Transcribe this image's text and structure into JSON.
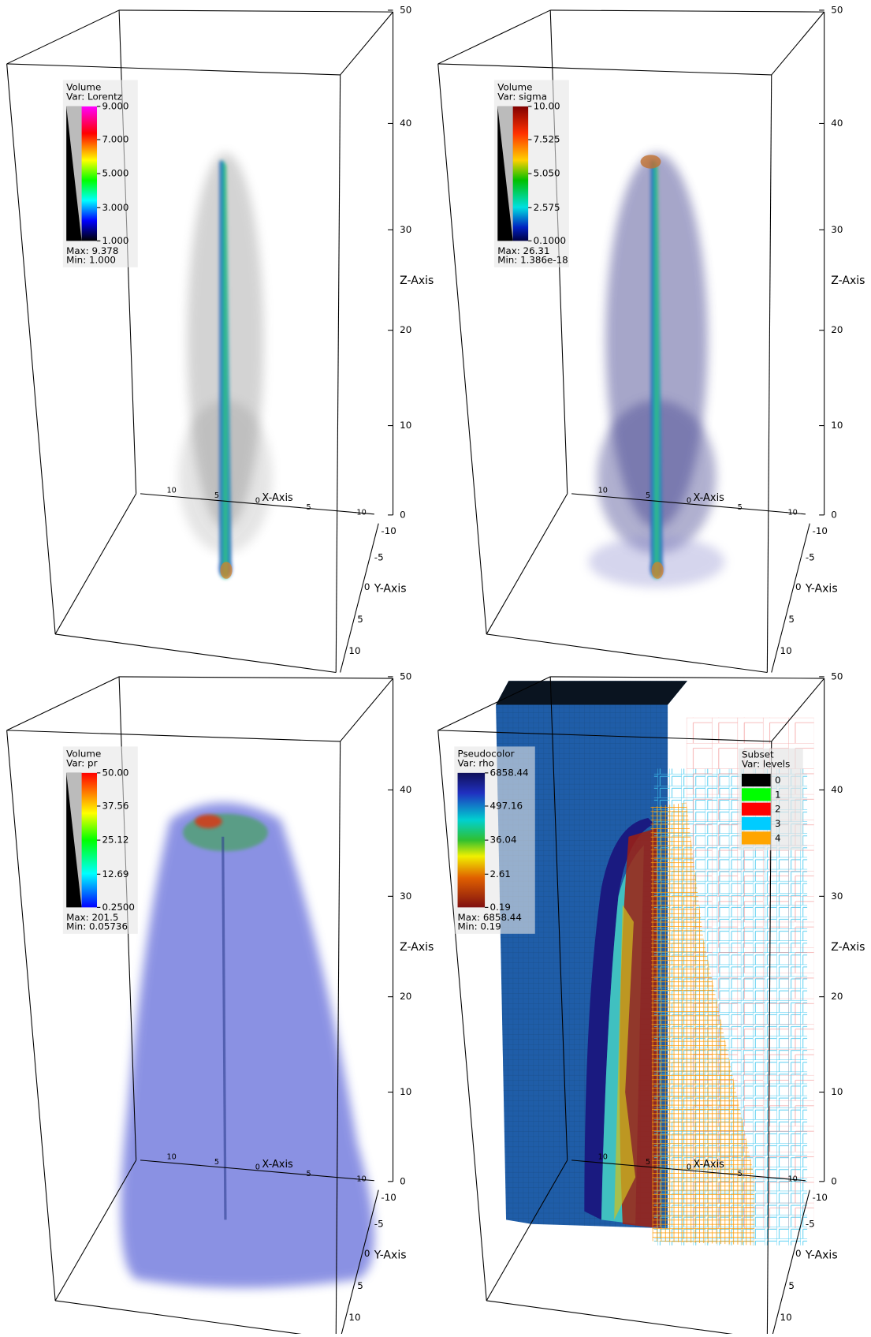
{
  "axes": {
    "z_ticks": [
      "50",
      "40",
      "30",
      "20",
      "10",
      "0"
    ],
    "z_label": "Z-Axis",
    "x_ticks": [
      "10",
      "5",
      "0",
      "5",
      "-10"
    ],
    "x_label": "X-Axis",
    "y_ticks": [
      "-10",
      "-5",
      "0",
      "5",
      "10"
    ],
    "y_label": "Y-Axis"
  },
  "panels": [
    {
      "legend": {
        "title": "Volume",
        "var": "Var: Lorentz",
        "ticks": [
          "9.000",
          "7.000",
          "5.000",
          "3.000",
          "1.000"
        ],
        "max": "Max:  9.378",
        "min": "Min:  1.000"
      }
    },
    {
      "legend": {
        "title": "Volume",
        "var": "Var: sigma",
        "ticks": [
          "10.00",
          "7.525",
          "5.050",
          "2.575",
          "0.1000"
        ],
        "max": "Max:  26.31",
        "min": "Min:  1.386e-18"
      }
    },
    {
      "legend": {
        "title": "Volume",
        "var": "Var: pr",
        "ticks": [
          "50.00",
          "37.56",
          "25.12",
          "12.69",
          "0.2500"
        ],
        "max": "Max:  201.5",
        "min": "Min:  0.05736"
      }
    },
    {
      "legend": {
        "title": "Pseudocolor",
        "var": "Var: rho",
        "ticks": [
          "6858.44",
          "497.16",
          "36.04",
          "2.61",
          "0.19"
        ],
        "max": "Max:  6858.44",
        "min": "Min:  0.19"
      },
      "subset": {
        "title": "Subset",
        "var": "Var: levels",
        "items": [
          {
            "label": "0",
            "color": "#000000"
          },
          {
            "label": "1",
            "color": "#00ff00"
          },
          {
            "label": "2",
            "color": "#ff0000"
          },
          {
            "label": "3",
            "color": "#00ccff"
          },
          {
            "label": "4",
            "color": "#ffa500"
          }
        ]
      }
    }
  ]
}
